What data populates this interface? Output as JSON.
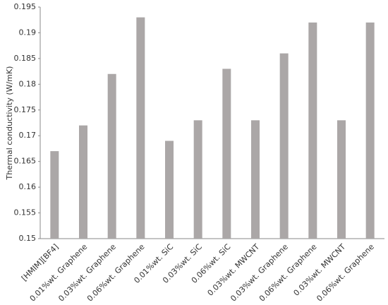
{
  "chart_data": {
    "type": "bar",
    "y_label": "Thermal conductivity (W/mK)",
    "categories": [
      "[HMIM][BF4]",
      "0.01%wt. Graphene",
      "0.03%wt. Graphene",
      "0.06%wt. Graphene",
      "0.01%wt. SiC",
      "0.03%wt. SiC",
      "0.06%wt. SiC",
      "0.03%wt. MWCNT",
      "0.03%wt. Graphene",
      "0.06%wt. Graphene",
      "0.03%wt. MWCNT",
      "0.06%wt. Graphene"
    ],
    "values": [
      0.167,
      0.172,
      0.182,
      0.193,
      0.169,
      0.173,
      0.183,
      0.173,
      0.186,
      0.192,
      0.173,
      0.192
    ],
    "color": "#aba7a7",
    "ylim": [
      0.15,
      0.195
    ],
    "yticks": [
      0.15,
      0.155,
      0.16,
      0.165,
      0.17,
      0.175,
      0.18,
      0.185,
      0.19,
      0.195
    ],
    "grid": false
  }
}
